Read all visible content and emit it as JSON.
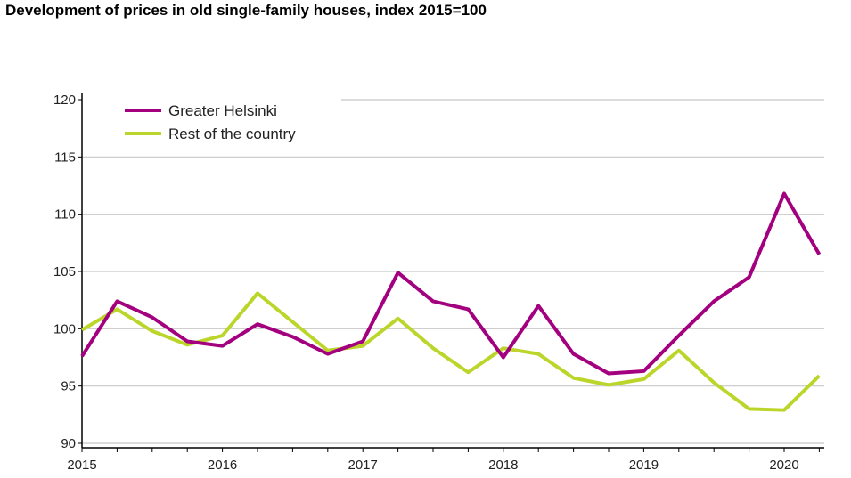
{
  "chart_data": {
    "type": "line",
    "title": "Development of prices in old single-family houses, index 2015=100",
    "xlabel": "",
    "ylabel": "",
    "ylim": [
      90,
      120
    ],
    "yticks": [
      "90",
      "95",
      "100",
      "105",
      "110",
      "115",
      "120"
    ],
    "xticks": [
      "2015",
      "2016",
      "2017",
      "2018",
      "2019",
      "2020"
    ],
    "x": [
      "2015Q1",
      "2015Q2",
      "2015Q3",
      "2015Q4",
      "2016Q1",
      "2016Q2",
      "2016Q3",
      "2016Q4",
      "2017Q1",
      "2017Q2",
      "2017Q3",
      "2017Q4",
      "2018Q1",
      "2018Q2",
      "2018Q3",
      "2018Q4",
      "2019Q1",
      "2019Q2",
      "2019Q3",
      "2019Q4",
      "2020Q1",
      "2020Q2"
    ],
    "grid": "horizontal",
    "legend": "top-left",
    "series": [
      {
        "name": "Greater Helsinki",
        "color": "#a3007f",
        "values": [
          97.6,
          102.4,
          101.0,
          98.9,
          98.5,
          100.4,
          99.3,
          97.8,
          98.9,
          104.9,
          102.4,
          101.7,
          97.5,
          102.0,
          97.8,
          96.1,
          96.3,
          99.4,
          102.4,
          104.5,
          111.8,
          106.5
        ]
      },
      {
        "name": "Rest of the country",
        "color": "#bcd52a",
        "values": [
          99.9,
          101.7,
          99.8,
          98.6,
          99.4,
          103.1,
          100.6,
          98.1,
          98.5,
          100.9,
          98.3,
          96.2,
          98.3,
          97.8,
          95.7,
          95.1,
          95.6,
          98.1,
          95.3,
          93.0,
          92.9,
          95.9
        ]
      }
    ]
  }
}
